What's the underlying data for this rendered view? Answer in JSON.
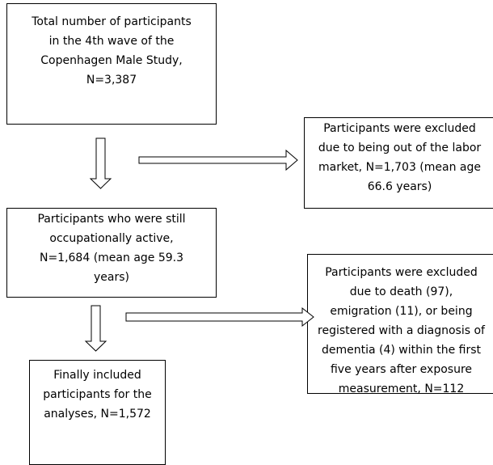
{
  "boxes": {
    "total": {
      "lines": [
        "Total number of participants",
        "in the 4th wave of the",
        "Copenhagen Male Study,",
        "N=3,387"
      ]
    },
    "excluded_labor": {
      "lines": [
        "Participants were excluded",
        "due to being out of the labor",
        "market, N=1,703 (mean age",
        "66.6 years)"
      ]
    },
    "active": {
      "lines": [
        "Participants who were still",
        "occupationally active,",
        "N=1,684 (mean age 59.3",
        "years)"
      ]
    },
    "excluded_death": {
      "lines": [
        "Participants were excluded",
        "due to death (97),",
        "emigration (11), or being",
        "registered with a diagnosis of",
        "dementia (4) within the first",
        "five years after exposure",
        "measurement, N=112"
      ]
    },
    "final": {
      "lines": [
        "Finally included",
        "participants for the",
        "analyses, N=1,572"
      ]
    }
  }
}
